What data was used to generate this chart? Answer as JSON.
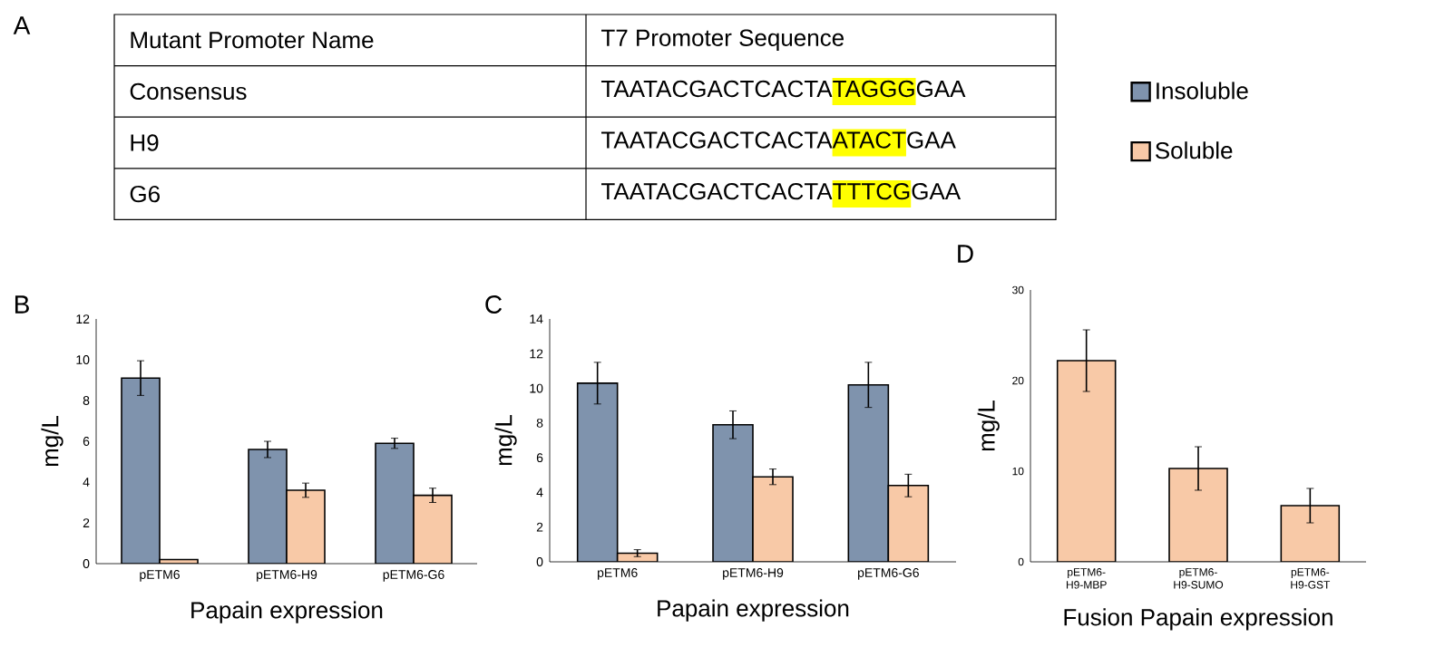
{
  "chart_data": [
    {
      "type": "other",
      "annotations": [
        "A",
        "Mutant Promoter Name",
        "T7 Promoter Sequence",
        "Consensus",
        "TAATACGACTCACTA",
        "TAGGG",
        "GAA",
        "H9",
        "TAATACGACTCACTA",
        "ATACT",
        "GAA",
        "G6",
        "TAATACGACTCACTA",
        "TTTCG",
        "GAA"
      ]
    },
    {
      "type": "bar",
      "annotations": [
        "B"
      ],
      "xlabel": "Papain expression",
      "ylabel": "mg/L",
      "categories": [
        "pETM6",
        "pETM6-H9",
        "pETM6-G6"
      ],
      "ylim": [
        0,
        12
      ],
      "yticks": [
        0,
        2,
        4,
        6,
        8,
        10,
        12
      ],
      "legend": "top right",
      "series": [
        {
          "name": "Insoluble",
          "color": "#7f93ad",
          "values": [
            9.1,
            5.6,
            5.9
          ],
          "errors": [
            0.85,
            0.4,
            0.25
          ]
        },
        {
          "name": "Soluble",
          "color": "#f8c9a7",
          "values": [
            0.2,
            3.6,
            3.35
          ],
          "errors": [
            null,
            0.35,
            0.35
          ]
        }
      ]
    },
    {
      "type": "bar",
      "annotations": [
        "C"
      ],
      "xlabel": "Papain expression",
      "ylabel": "mg/L",
      "categories": [
        "pETM6",
        "pETM6-H9",
        "pETM6-G6"
      ],
      "ylim": [
        0,
        14
      ],
      "yticks": [
        0,
        2,
        4,
        6,
        8,
        10,
        12,
        14
      ],
      "series": [
        {
          "color": "#7f93ad",
          "values": [
            10.3,
            7.9,
            10.2
          ],
          "errors": [
            1.2,
            0.8,
            1.3
          ]
        },
        {
          "color": "#f8c9a7",
          "values": [
            0.5,
            4.9,
            4.4
          ],
          "errors": [
            0.2,
            0.45,
            0.65
          ]
        }
      ]
    },
    {
      "type": "bar",
      "annotations": [
        "D"
      ],
      "xlabel": "Fusion Papain expression",
      "ylabel": "mg/L",
      "categories": [
        "pETM6-H9-MBP",
        "pETM6-H9-SUMO",
        "pETM6-H9-GST"
      ],
      "ylim": [
        0,
        30
      ],
      "yticks": [
        0,
        10,
        20,
        30
      ],
      "series": [
        {
          "color": "#f8c9a7",
          "values": [
            22.2,
            10.3,
            6.2
          ],
          "errors": [
            3.4,
            2.4,
            1.9
          ]
        }
      ]
    }
  ]
}
